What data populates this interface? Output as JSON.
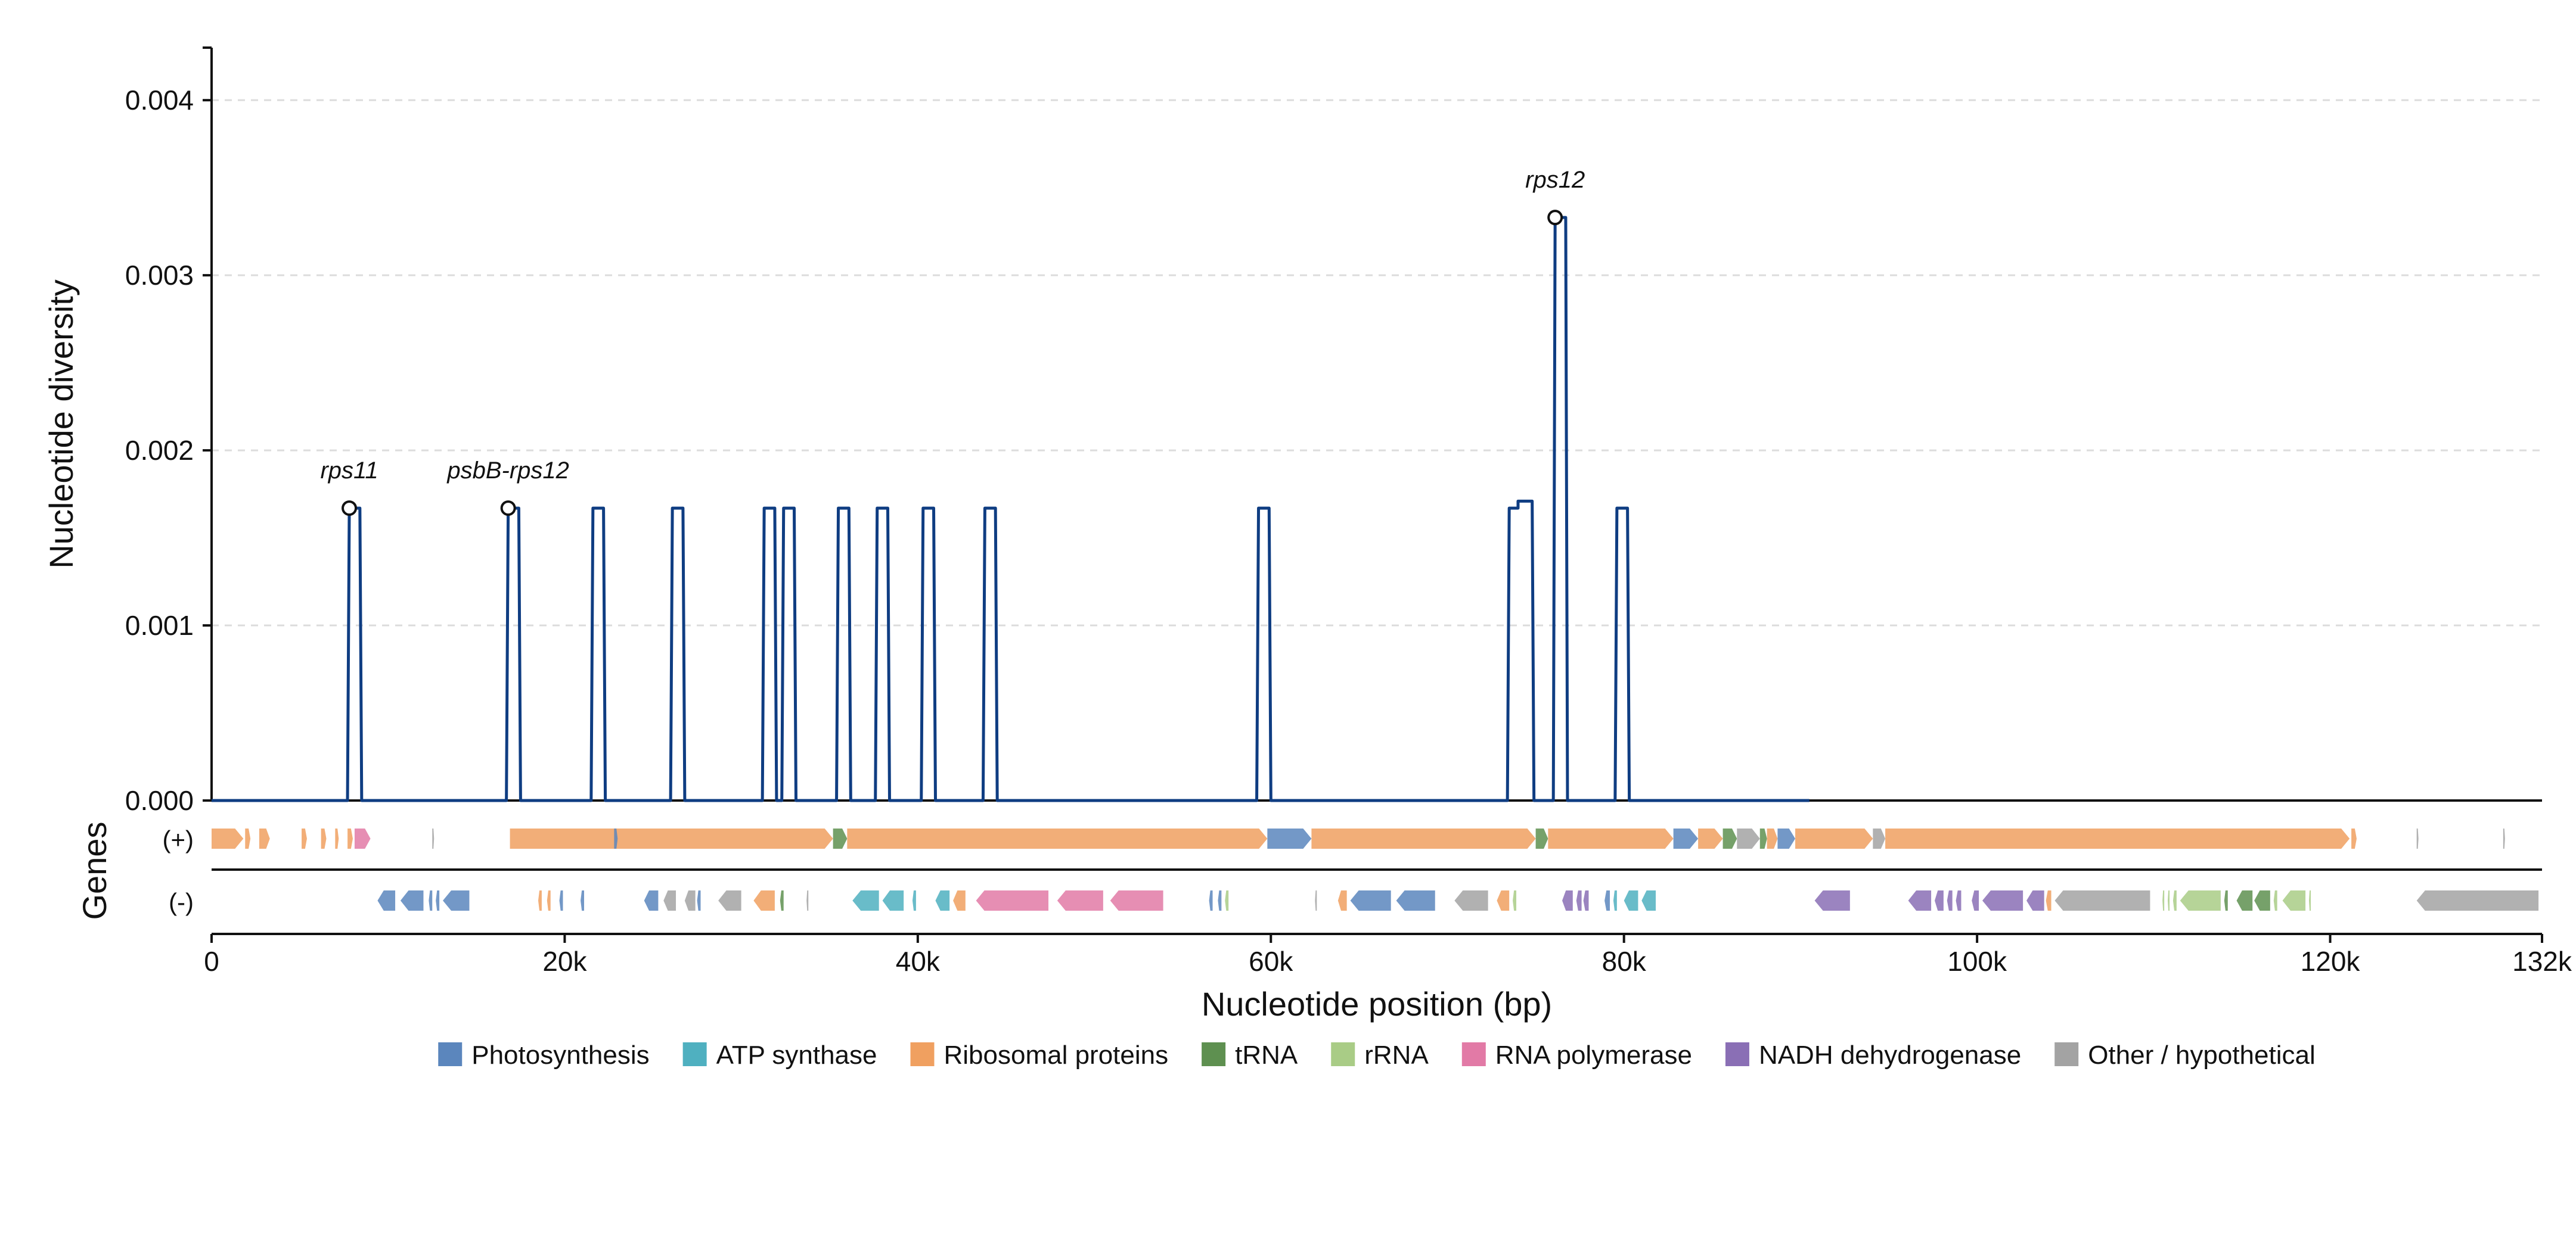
{
  "chart_data": {
    "type": "line",
    "xlabel": "Nucleotide position (bp)",
    "ylabel": "Nucleotide diversity",
    "xlim": [
      0,
      132000
    ],
    "ylim": [
      0,
      0.0043
    ],
    "x_ticks": [
      0,
      20000,
      40000,
      60000,
      80000,
      100000,
      120000,
      132000
    ],
    "x_tick_labels": [
      "0",
      "20k",
      "40k",
      "60k",
      "80k",
      "100k",
      "120k",
      "132k"
    ],
    "y_ticks": [
      0,
      0.001,
      0.002,
      0.003,
      0.004
    ],
    "y_tick_labels": [
      "0.000",
      "0.001",
      "0.002",
      "0.003",
      "0.004"
    ],
    "grid": "horizontal dashed",
    "series": [
      {
        "color": "#0f3d82",
        "x_end": 90500,
        "peaks": [
          {
            "start": 7800,
            "end": 8400,
            "value": 0.00167
          },
          {
            "start": 16800,
            "end": 17400,
            "value": 0.00167
          },
          {
            "start": 21600,
            "end": 22200,
            "value": 0.00167
          },
          {
            "start": 26100,
            "end": 26700,
            "value": 0.00167
          },
          {
            "start": 31300,
            "end": 31900,
            "value": 0.00167
          },
          {
            "start": 32400,
            "end": 33000,
            "value": 0.00167
          },
          {
            "start": 35500,
            "end": 36100,
            "value": 0.00167
          },
          {
            "start": 37700,
            "end": 38300,
            "value": 0.00167
          },
          {
            "start": 40300,
            "end": 40900,
            "value": 0.00167
          },
          {
            "start": 43800,
            "end": 44400,
            "value": 0.00167
          },
          {
            "start": 59300,
            "end": 59900,
            "value": 0.00167
          },
          {
            "start": 73500,
            "end": 74000,
            "value": 0.00167
          },
          {
            "start": 74000,
            "end": 74800,
            "value": 0.00171
          },
          {
            "start": 76100,
            "end": 76700,
            "value": 0.00333
          },
          {
            "start": 79600,
            "end": 80200,
            "value": 0.00167
          }
        ]
      }
    ],
    "annotations": [
      {
        "label": "rps11",
        "x": 7800,
        "y": 0.00167
      },
      {
        "label": "psbB-rps12",
        "x": 16800,
        "y": 0.00167
      },
      {
        "label": "rps12",
        "x": 76100,
        "y": 0.00333
      }
    ],
    "gene_track": {
      "title": "Genes",
      "strand_labels": [
        "(+)",
        "(-)"
      ],
      "categories": [
        {
          "name": "Photosynthesis",
          "color": "#5b86bd"
        },
        {
          "name": "ATP synthase",
          "color": "#4fb0c0"
        },
        {
          "name": "Ribosomal proteins",
          "color": "#f0a060"
        },
        {
          "name": "tRNA",
          "color": "#5e9050"
        },
        {
          "name": "rRNA",
          "color": "#a9cc86"
        },
        {
          "name": "RNA polymerase",
          "color": "#e27aa6"
        },
        {
          "name": "NADH dehydrogenase",
          "color": "#8a6fb5"
        },
        {
          "name": "Other / hypothetical",
          "color": "#a3a3a3"
        }
      ],
      "plus_genes": [
        {
          "start": 0,
          "end": 1800,
          "cat": 2
        },
        {
          "start": 1900,
          "end": 2200,
          "cat": 2
        },
        {
          "start": 2700,
          "end": 3300,
          "cat": 2
        },
        {
          "start": 5100,
          "end": 5400,
          "cat": 2
        },
        {
          "start": 6200,
          "end": 6500,
          "cat": 2
        },
        {
          "start": 7000,
          "end": 7200,
          "cat": 2
        },
        {
          "start": 7700,
          "end": 8000,
          "cat": 2
        },
        {
          "start": 8100,
          "end": 9000,
          "cat": 5
        },
        {
          "start": 12500,
          "end": 12600,
          "cat": 7
        },
        {
          "start": 16900,
          "end": 35200,
          "cat": 2
        },
        {
          "start": 22800,
          "end": 23000,
          "cat": 0
        },
        {
          "start": 35200,
          "end": 36000,
          "cat": 3
        },
        {
          "start": 36000,
          "end": 59800,
          "cat": 2
        },
        {
          "start": 59800,
          "end": 62300,
          "cat": 0
        },
        {
          "start": 62300,
          "end": 75000,
          "cat": 2
        },
        {
          "start": 75000,
          "end": 75700,
          "cat": 3
        },
        {
          "start": 75700,
          "end": 82800,
          "cat": 2
        },
        {
          "start": 82800,
          "end": 84200,
          "cat": 0
        },
        {
          "start": 84200,
          "end": 85600,
          "cat": 2
        },
        {
          "start": 85600,
          "end": 86400,
          "cat": 3
        },
        {
          "start": 86400,
          "end": 87700,
          "cat": 7
        },
        {
          "start": 87700,
          "end": 88100,
          "cat": 3
        },
        {
          "start": 88100,
          "end": 88700,
          "cat": 2
        },
        {
          "start": 88700,
          "end": 89700,
          "cat": 0
        },
        {
          "start": 89700,
          "end": 94100,
          "cat": 2
        },
        {
          "start": 94100,
          "end": 94800,
          "cat": 7
        },
        {
          "start": 94800,
          "end": 121100,
          "cat": 2
        },
        {
          "start": 121200,
          "end": 121500,
          "cat": 2
        },
        {
          "start": 124900,
          "end": 125000,
          "cat": 7
        },
        {
          "start": 129800,
          "end": 129900,
          "cat": 7
        }
      ],
      "minus_genes": [
        {
          "start": 9400,
          "end": 10400,
          "cat": 0
        },
        {
          "start": 10700,
          "end": 12000,
          "cat": 0
        },
        {
          "start": 12300,
          "end": 12500,
          "cat": 0
        },
        {
          "start": 12700,
          "end": 12900,
          "cat": 0
        },
        {
          "start": 13100,
          "end": 14600,
          "cat": 0
        },
        {
          "start": 18500,
          "end": 18700,
          "cat": 2
        },
        {
          "start": 19000,
          "end": 19200,
          "cat": 2
        },
        {
          "start": 19700,
          "end": 19900,
          "cat": 0
        },
        {
          "start": 20900,
          "end": 21100,
          "cat": 0
        },
        {
          "start": 24500,
          "end": 25300,
          "cat": 0
        },
        {
          "start": 25600,
          "end": 26300,
          "cat": 7
        },
        {
          "start": 26800,
          "end": 27400,
          "cat": 7
        },
        {
          "start": 27500,
          "end": 27700,
          "cat": 0
        },
        {
          "start": 28700,
          "end": 30000,
          "cat": 7
        },
        {
          "start": 30700,
          "end": 31900,
          "cat": 2
        },
        {
          "start": 32200,
          "end": 32400,
          "cat": 3
        },
        {
          "start": 33700,
          "end": 33800,
          "cat": 7
        },
        {
          "start": 36300,
          "end": 37800,
          "cat": 1
        },
        {
          "start": 38000,
          "end": 39200,
          "cat": 1
        },
        {
          "start": 39700,
          "end": 39900,
          "cat": 1
        },
        {
          "start": 41000,
          "end": 41800,
          "cat": 1
        },
        {
          "start": 42000,
          "end": 42700,
          "cat": 2
        },
        {
          "start": 43300,
          "end": 47400,
          "cat": 5
        },
        {
          "start": 47900,
          "end": 50500,
          "cat": 5
        },
        {
          "start": 50900,
          "end": 53900,
          "cat": 5
        },
        {
          "start": 56500,
          "end": 56700,
          "cat": 0
        },
        {
          "start": 57000,
          "end": 57200,
          "cat": 0
        },
        {
          "start": 57400,
          "end": 57600,
          "cat": 4
        },
        {
          "start": 62500,
          "end": 62600,
          "cat": 7
        },
        {
          "start": 63800,
          "end": 64300,
          "cat": 2
        },
        {
          "start": 64500,
          "end": 66800,
          "cat": 0
        },
        {
          "start": 67100,
          "end": 69300,
          "cat": 0
        },
        {
          "start": 70400,
          "end": 72300,
          "cat": 7
        },
        {
          "start": 72800,
          "end": 73500,
          "cat": 2
        },
        {
          "start": 73700,
          "end": 73900,
          "cat": 4
        },
        {
          "start": 76500,
          "end": 77100,
          "cat": 6
        },
        {
          "start": 77300,
          "end": 77600,
          "cat": 6
        },
        {
          "start": 77700,
          "end": 78000,
          "cat": 6
        },
        {
          "start": 78900,
          "end": 79200,
          "cat": 0
        },
        {
          "start": 79400,
          "end": 79600,
          "cat": 1
        },
        {
          "start": 80000,
          "end": 80800,
          "cat": 1
        },
        {
          "start": 81000,
          "end": 81800,
          "cat": 1
        },
        {
          "start": 90800,
          "end": 92800,
          "cat": 6
        },
        {
          "start": 96100,
          "end": 97400,
          "cat": 6
        },
        {
          "start": 97600,
          "end": 98100,
          "cat": 6
        },
        {
          "start": 98300,
          "end": 98600,
          "cat": 6
        },
        {
          "start": 98800,
          "end": 99100,
          "cat": 6
        },
        {
          "start": 99700,
          "end": 100100,
          "cat": 6
        },
        {
          "start": 100300,
          "end": 102600,
          "cat": 6
        },
        {
          "start": 102800,
          "end": 103800,
          "cat": 6
        },
        {
          "start": 103900,
          "end": 104200,
          "cat": 2
        },
        {
          "start": 104400,
          "end": 109800,
          "cat": 7
        },
        {
          "start": 110500,
          "end": 110600,
          "cat": 4
        },
        {
          "start": 110800,
          "end": 110900,
          "cat": 4
        },
        {
          "start": 111100,
          "end": 111300,
          "cat": 4
        },
        {
          "start": 111500,
          "end": 113800,
          "cat": 4
        },
        {
          "start": 114000,
          "end": 114200,
          "cat": 3
        },
        {
          "start": 114700,
          "end": 115600,
          "cat": 3
        },
        {
          "start": 115700,
          "end": 116600,
          "cat": 3
        },
        {
          "start": 116800,
          "end": 117000,
          "cat": 4
        },
        {
          "start": 117300,
          "end": 118600,
          "cat": 4
        },
        {
          "start": 118800,
          "end": 118900,
          "cat": 4
        },
        {
          "start": 124900,
          "end": 131800,
          "cat": 7
        }
      ]
    }
  }
}
